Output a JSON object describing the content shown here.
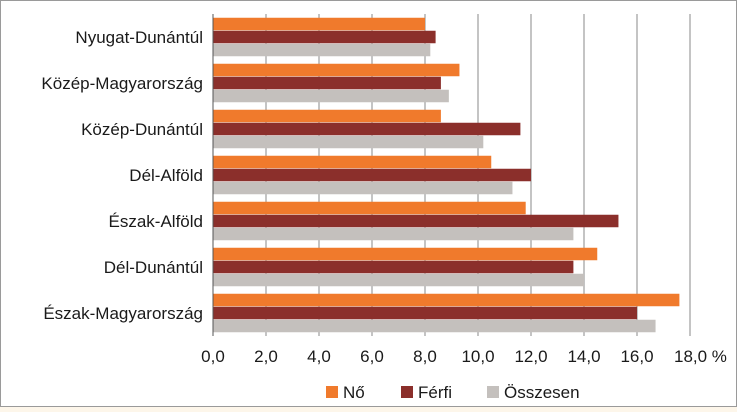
{
  "chart_data": {
    "type": "bar",
    "orientation": "horizontal",
    "categories": [
      "Nyugat-Dunántúl",
      "Közép-Magyarország",
      "Közép-Dunántúl",
      "Dél-Alföld",
      "Észak-Alföld",
      "Dél-Dunántúl",
      "Észak-Magyarország"
    ],
    "series": [
      {
        "name": "Nő",
        "color": "#f07a2c",
        "values": [
          8.0,
          9.3,
          8.6,
          10.5,
          11.8,
          14.5,
          17.6
        ]
      },
      {
        "name": "Férfi",
        "color": "#8b2f2b",
        "values": [
          8.4,
          8.6,
          11.6,
          12.0,
          15.3,
          13.6,
          16.0
        ]
      },
      {
        "name": "Összesen",
        "color": "#c4c0bd",
        "values": [
          8.2,
          8.9,
          10.2,
          11.3,
          13.6,
          14.0,
          16.7
        ]
      }
    ],
    "xlim": [
      0,
      18
    ],
    "x_ticks": [
      "0,0",
      "2,0",
      "4,0",
      "6,0",
      "8,0",
      "10,0",
      "12,0",
      "14,0",
      "16,0",
      "18,0 %"
    ],
    "grid": true,
    "legend_position": "bottom",
    "title": "",
    "xlabel": "",
    "ylabel": ""
  }
}
